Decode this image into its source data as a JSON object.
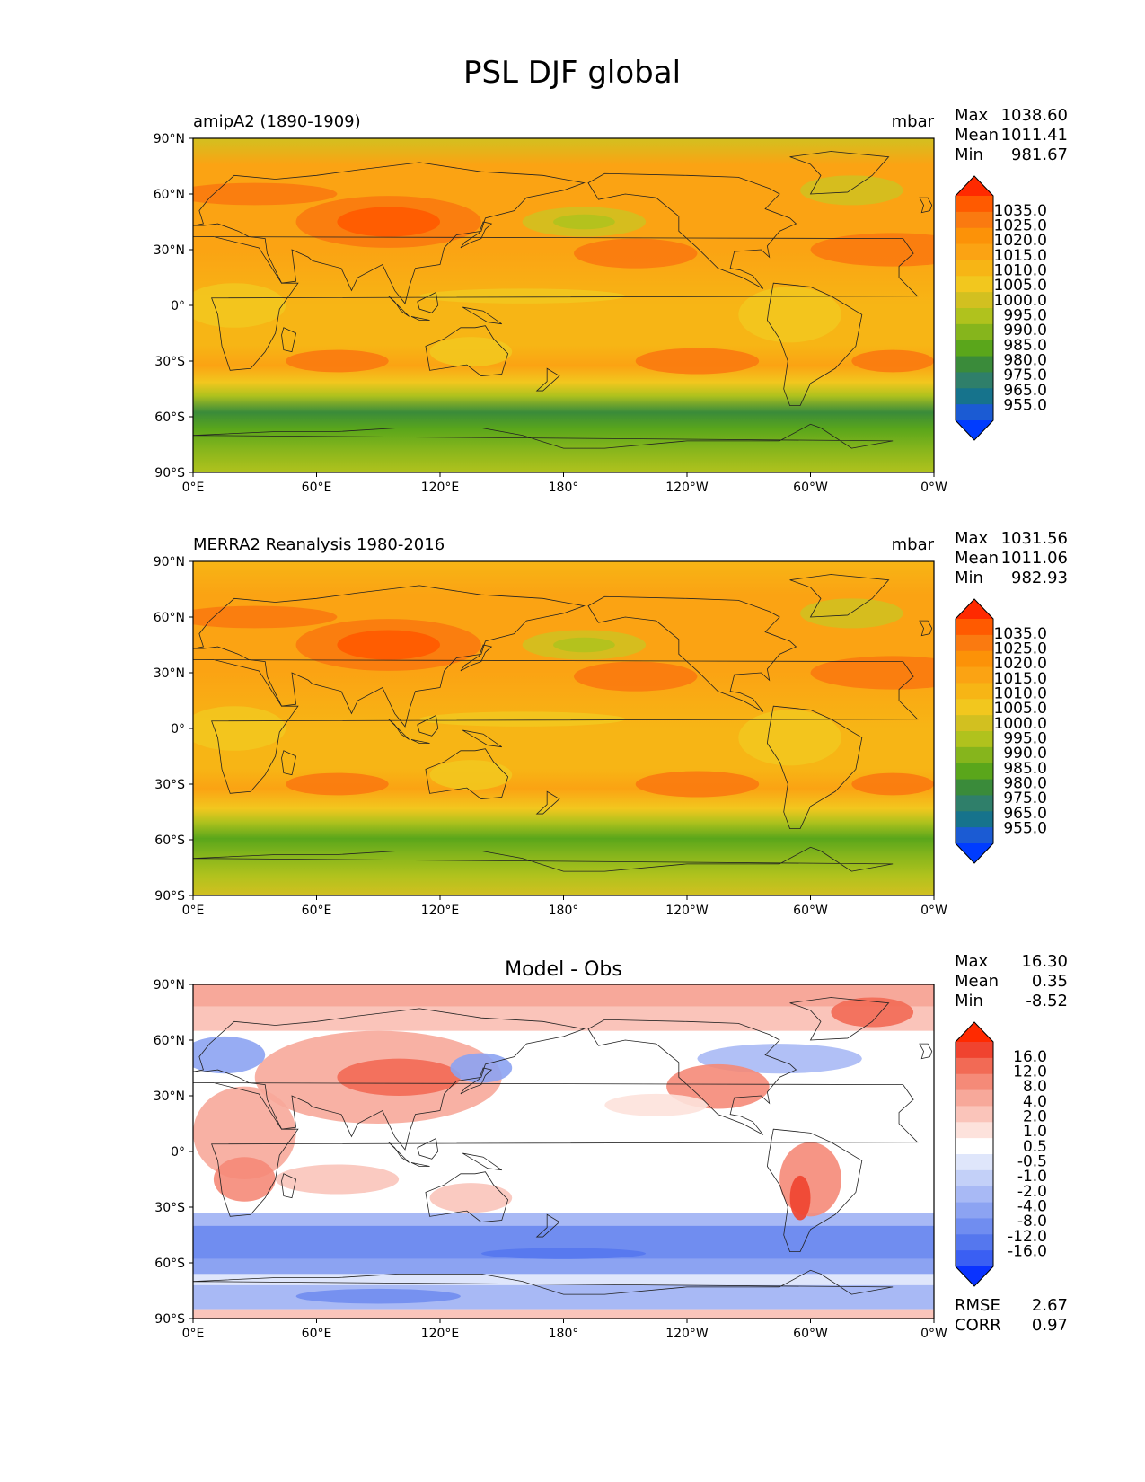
{
  "title": "PSL DJF global",
  "chart_data": [
    {
      "type": "heatmap",
      "title": "amipA2 (1890-1909)",
      "units": "mbar",
      "stats": [
        {
          "label": "Max",
          "value": "1038.60"
        },
        {
          "label": "Mean",
          "value": "1011.41"
        },
        {
          "label": "Min",
          "value": "981.67"
        }
      ],
      "x_ticks": [
        "0°E",
        "60°E",
        "120°E",
        "180°",
        "120°W",
        "60°W",
        "0°W"
      ],
      "y_ticks": [
        "90°N",
        "60°N",
        "30°N",
        "0°",
        "30°S",
        "60°S",
        "90°S"
      ],
      "colorbar": {
        "levels": [
          "1035.0",
          "1025.0",
          "1020.0",
          "1015.0",
          "1010.0",
          "1005.0",
          "1000.0",
          "995.0",
          "990.0",
          "985.0",
          "980.0",
          "975.0",
          "965.0",
          "955.0"
        ],
        "colors": [
          "#ff2a00",
          "#ff5a00",
          "#fa7a10",
          "#fc9208",
          "#fba313",
          "#f7b515",
          "#f2c71e",
          "#d2c020",
          "#b0c21d",
          "#86b51c",
          "#5aa61b",
          "#3a8b3a",
          "#2f7f6a",
          "#16738c",
          "#1b5bd3",
          "#003cff"
        ],
        "colors_label": "Palette colours, top to bottom"
      },
      "field": [
        {
          "lat": 90,
          "band": "#d2c020"
        },
        {
          "lat": 60,
          "band": "#fba313"
        },
        {
          "lat": 30,
          "band": "#fba313"
        },
        {
          "lat": 0,
          "band": "#f7b515"
        },
        {
          "lat": -30,
          "band": "#fba313"
        },
        {
          "lat": -50,
          "band": "#b0c21d"
        },
        {
          "lat": -60,
          "band": "#3a8b3a"
        },
        {
          "lat": -90,
          "band": "#b0c21d"
        }
      ]
    },
    {
      "type": "heatmap",
      "title": "MERRA2 Reanalysis 1980-2016",
      "units": "mbar",
      "stats": [
        {
          "label": "Max",
          "value": "1031.56"
        },
        {
          "label": "Mean",
          "value": "1011.06"
        },
        {
          "label": "Min",
          "value": "982.93"
        }
      ],
      "x_ticks": [
        "0°E",
        "60°E",
        "120°E",
        "180°",
        "120°W",
        "60°W",
        "0°W"
      ],
      "y_ticks": [
        "90°N",
        "60°N",
        "30°N",
        "0°",
        "30°S",
        "60°S",
        "90°S"
      ],
      "colorbar": {
        "levels": [
          "1035.0",
          "1025.0",
          "1020.0",
          "1015.0",
          "1010.0",
          "1005.0",
          "1000.0",
          "995.0",
          "990.0",
          "985.0",
          "980.0",
          "975.0",
          "965.0",
          "955.0"
        ],
        "colors": [
          "#ff2a00",
          "#ff5a00",
          "#fa7a10",
          "#fc9208",
          "#fba313",
          "#f7b515",
          "#f2c71e",
          "#d2c020",
          "#b0c21d",
          "#86b51c",
          "#5aa61b",
          "#3a8b3a",
          "#2f7f6a",
          "#16738c",
          "#1b5bd3",
          "#003cff"
        ]
      }
    },
    {
      "type": "heatmap",
      "title": "Model - Obs",
      "stats": [
        {
          "label": "Max",
          "value": "16.30"
        },
        {
          "label": "Mean",
          "value": "0.35"
        },
        {
          "label": "Min",
          "value": "-8.52"
        }
      ],
      "extra_stats": [
        {
          "label": "RMSE",
          "value": "2.67"
        },
        {
          "label": "CORR",
          "value": "0.97"
        }
      ],
      "x_ticks": [
        "0°E",
        "60°E",
        "120°E",
        "180°",
        "120°W",
        "60°W",
        "0°W"
      ],
      "y_ticks": [
        "90°N",
        "60°N",
        "30°N",
        "0°",
        "30°S",
        "60°S",
        "90°S"
      ],
      "colorbar": {
        "levels": [
          "16.0",
          "12.0",
          "8.0",
          "4.0",
          "2.0",
          "1.0",
          "0.5",
          "-0.5",
          "-1.0",
          "-2.0",
          "-4.0",
          "-8.0",
          "-12.0",
          "-16.0"
        ],
        "colors": [
          "#ff2a00",
          "#f0432f",
          "#f26a55",
          "#f58a78",
          "#f7a89a",
          "#fac4ba",
          "#fde2dc",
          "#ffffff",
          "#dfe6fb",
          "#c3d0f8",
          "#a8b9f5",
          "#8ca3f2",
          "#708df0",
          "#5577ee",
          "#3a5ff3",
          "#0a33ff"
        ]
      }
    }
  ]
}
